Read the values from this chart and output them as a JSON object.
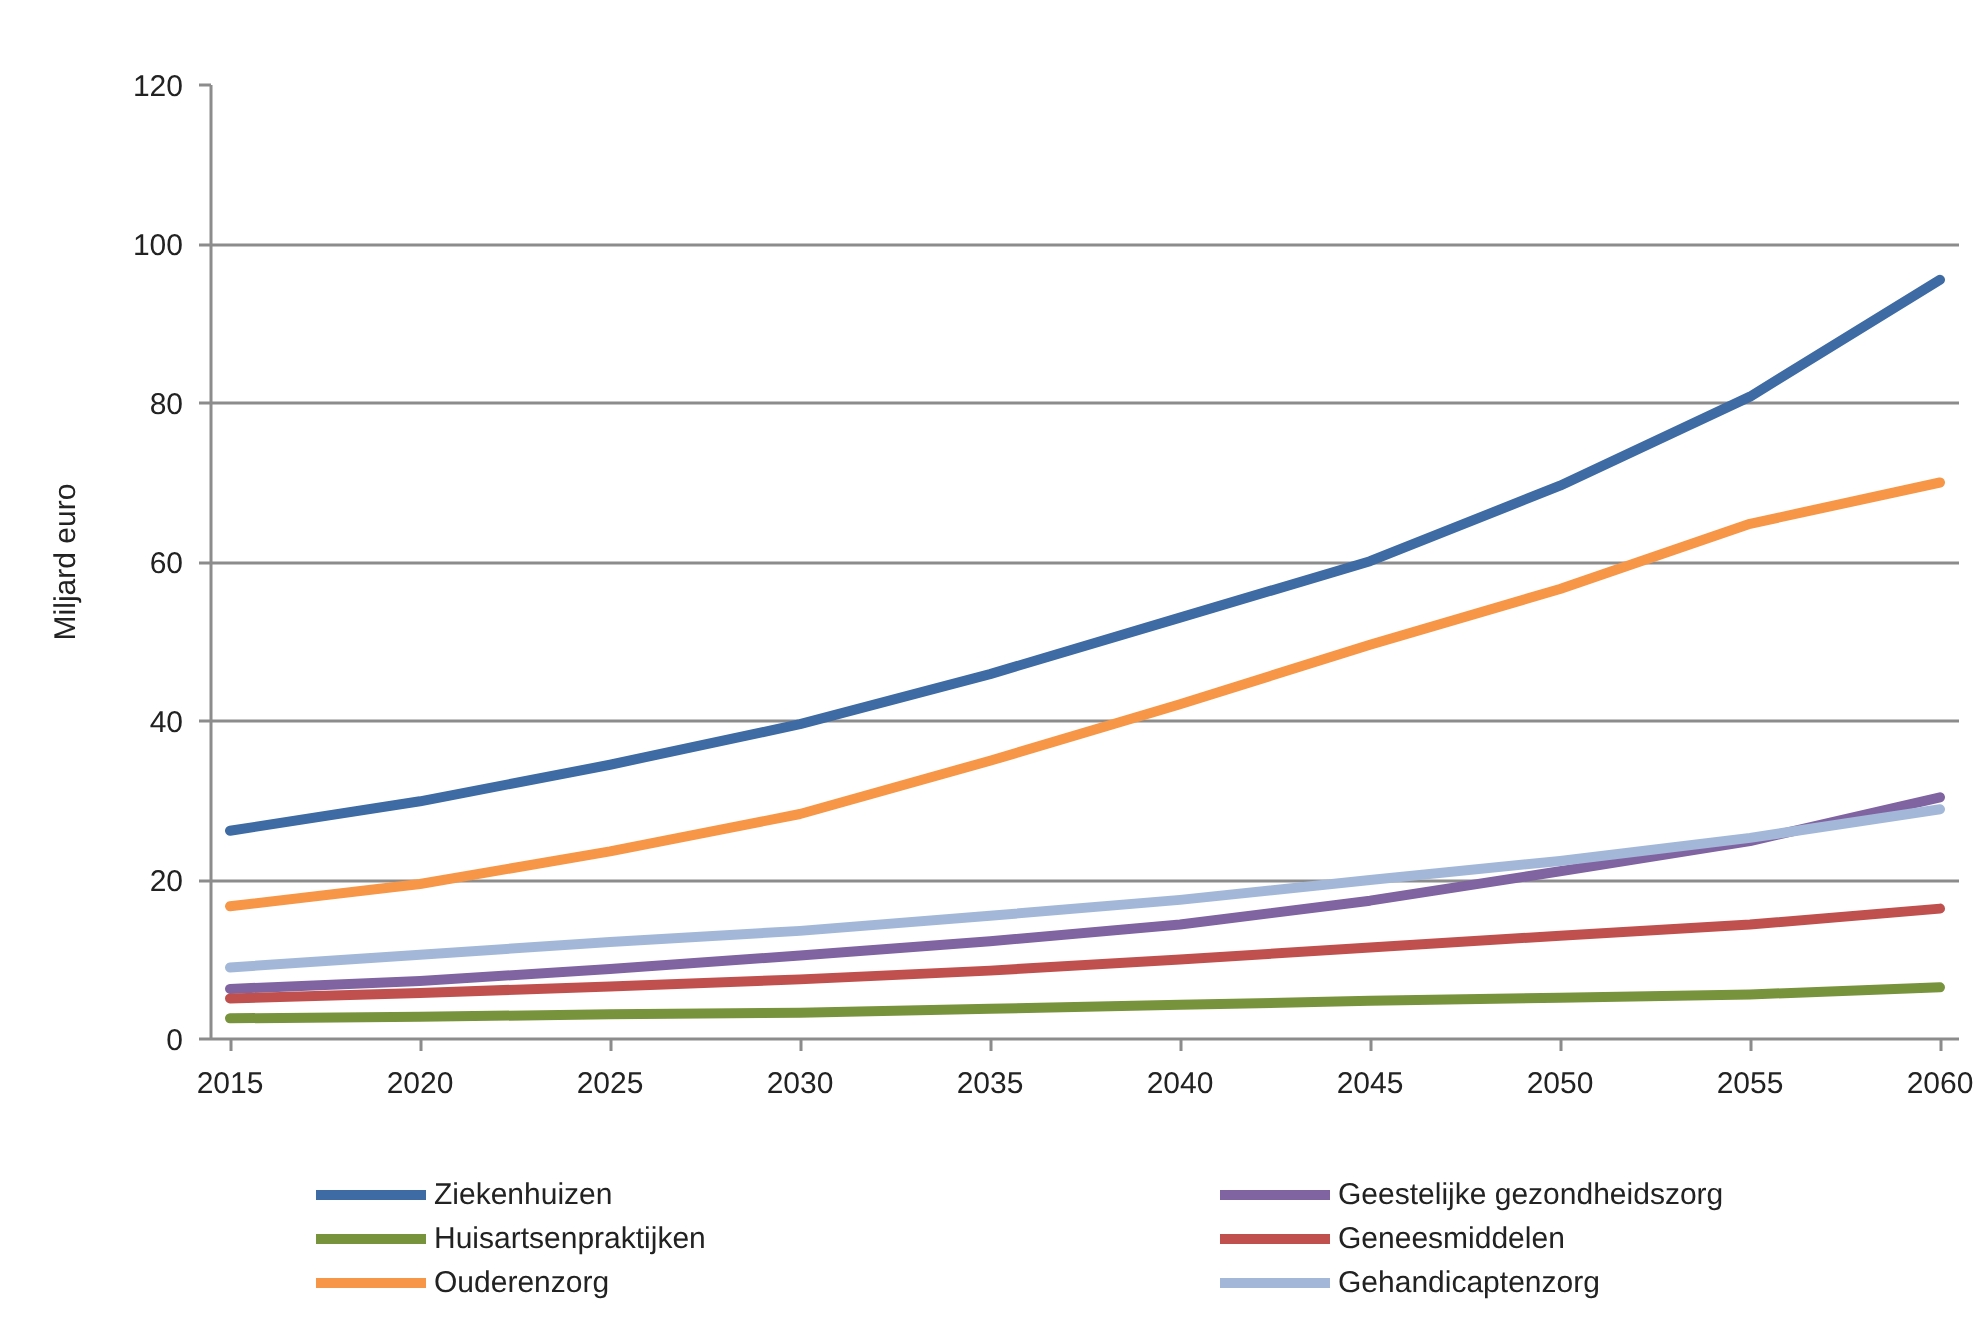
{
  "chart_data": {
    "type": "line",
    "ylabel": "Miljard euro",
    "x": [
      2015,
      2020,
      2025,
      2030,
      2035,
      2040,
      2045,
      2050,
      2055,
      2060
    ],
    "series": [
      {
        "name": "Ziekenhuizen",
        "color": "#3e6ba3",
        "values": [
          26.2,
          29.9,
          34.5,
          39.6,
          45.9,
          53.0,
          60.1,
          69.6,
          80.8,
          95.5
        ]
      },
      {
        "name": "Geestelijke gezondheidszorg",
        "color": "#8064a2",
        "values": [
          6.3,
          7.3,
          8.8,
          10.5,
          12.3,
          14.4,
          17.4,
          21.1,
          24.9,
          30.4
        ]
      },
      {
        "name": "Huisartsenpraktijken",
        "color": "#77933c",
        "values": [
          2.6,
          2.8,
          3.1,
          3.3,
          3.8,
          4.3,
          4.8,
          5.2,
          5.6,
          6.5
        ]
      },
      {
        "name": "Geneesmiddelen",
        "color": "#c0504d",
        "values": [
          5.1,
          5.8,
          6.6,
          7.5,
          8.6,
          10.0,
          11.5,
          13.0,
          14.4,
          16.4
        ]
      },
      {
        "name": "Ouderenzorg",
        "color": "#f79646",
        "values": [
          16.7,
          19.5,
          23.6,
          28.3,
          35.0,
          42.1,
          49.6,
          56.6,
          64.8,
          70.0
        ]
      },
      {
        "name": "Gehandicaptenzorg",
        "color": "#a3b8d8",
        "values": [
          9.0,
          10.6,
          12.2,
          13.6,
          15.5,
          17.5,
          20.0,
          22.4,
          25.3,
          28.9
        ]
      }
    ],
    "xlim": [
      2014.5,
      2060.5
    ],
    "xticks": [
      2015,
      2020,
      2025,
      2030,
      2035,
      2040,
      2045,
      2050,
      2055,
      2060
    ],
    "ylim": [
      0,
      120
    ],
    "yticks": [
      0,
      20,
      40,
      60,
      80,
      100,
      120
    ],
    "grid": "y",
    "legend": "bottom",
    "line_style": "solid"
  }
}
